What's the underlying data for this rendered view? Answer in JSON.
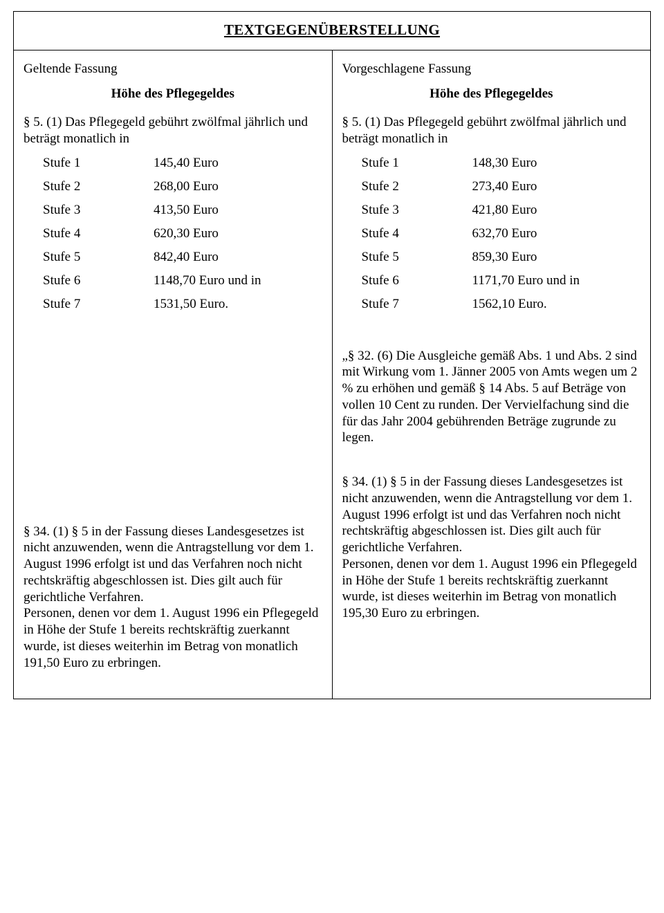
{
  "title": "TEXTGEGENÜBERSTELLUNG",
  "left": {
    "version_label": "Geltende Fassung",
    "section_heading": "Höhe des Pflegegeldes",
    "intro": "§ 5. (1) Das Pflegegeld gebührt zwölfmal jährlich und beträgt monatlich in",
    "rows": [
      {
        "label": "Stufe 1",
        "value": "145,40 Euro"
      },
      {
        "label": "Stufe 2",
        "value": "268,00 Euro"
      },
      {
        "label": "Stufe 3",
        "value": "413,50 Euro"
      },
      {
        "label": "Stufe 4",
        "value": "620,30 Euro"
      },
      {
        "label": "Stufe 5",
        "value": "842,40 Euro"
      },
      {
        "label": "Stufe 6",
        "value": "1148,70 Euro und in"
      },
      {
        "label": "Stufe 7",
        "value": "1531,50 Euro."
      }
    ],
    "para34_a": "§ 34. (1) § 5 in der Fassung dieses Landesgesetzes ist nicht anzuwenden, wenn die Antragstellung vor dem 1. August 1996 erfolgt ist und das Verfahren noch nicht rechtskräftig abgeschlossen ist. Dies gilt auch für gerichtliche Verfahren.",
    "para34_b": "Personen, denen vor dem 1. August 1996 ein Pflegegeld in Höhe der Stufe 1 bereits rechtskräftig zuerkannt wurde, ist dieses weiterhin im Betrag von monatlich 191,50 Euro zu erbringen."
  },
  "right": {
    "version_label": "Vorgeschlagene Fassung",
    "section_heading": "Höhe des Pflegegeldes",
    "intro": "§ 5. (1) Das Pflegegeld gebührt zwölfmal jährlich und beträgt monatlich in",
    "rows": [
      {
        "label": "Stufe 1",
        "value": "148,30 Euro"
      },
      {
        "label": "Stufe 2",
        "value": "273,40 Euro"
      },
      {
        "label": "Stufe 3",
        "value": "421,80 Euro"
      },
      {
        "label": "Stufe 4",
        "value": "632,70 Euro"
      },
      {
        "label": "Stufe 5",
        "value": "859,30 Euro"
      },
      {
        "label": "Stufe 6",
        "value": "1171,70 Euro und in"
      },
      {
        "label": "Stufe 7",
        "value": "1562,10 Euro."
      }
    ],
    "para32": "„§ 32. (6) Die Ausgleiche gemäß Abs. 1 und Abs. 2 sind mit Wirkung vom 1. Jänner 2005 von Amts wegen um 2 % zu erhöhen und gemäß § 14 Abs. 5 auf Beträge von vollen 10 Cent zu runden. Der Vervielfachung sind die für das Jahr 2004 gebührenden Beträge zugrunde zu legen.",
    "para34_a": "§ 34. (1) § 5 in der Fassung dieses Landesgesetzes ist nicht anzuwenden, wenn die Antragstellung vor dem 1. August 1996 erfolgt ist und das Verfahren noch nicht rechtskräftig abgeschlossen ist. Dies gilt auch für gerichtliche Verfahren.",
    "para34_b": "Personen, denen vor dem 1. August 1996 ein Pflegegeld in Höhe der Stufe 1 bereits rechtskräftig zuerkannt wurde, ist dieses weiterhin im Betrag von monatlich 195,30 Euro zu erbringen."
  }
}
